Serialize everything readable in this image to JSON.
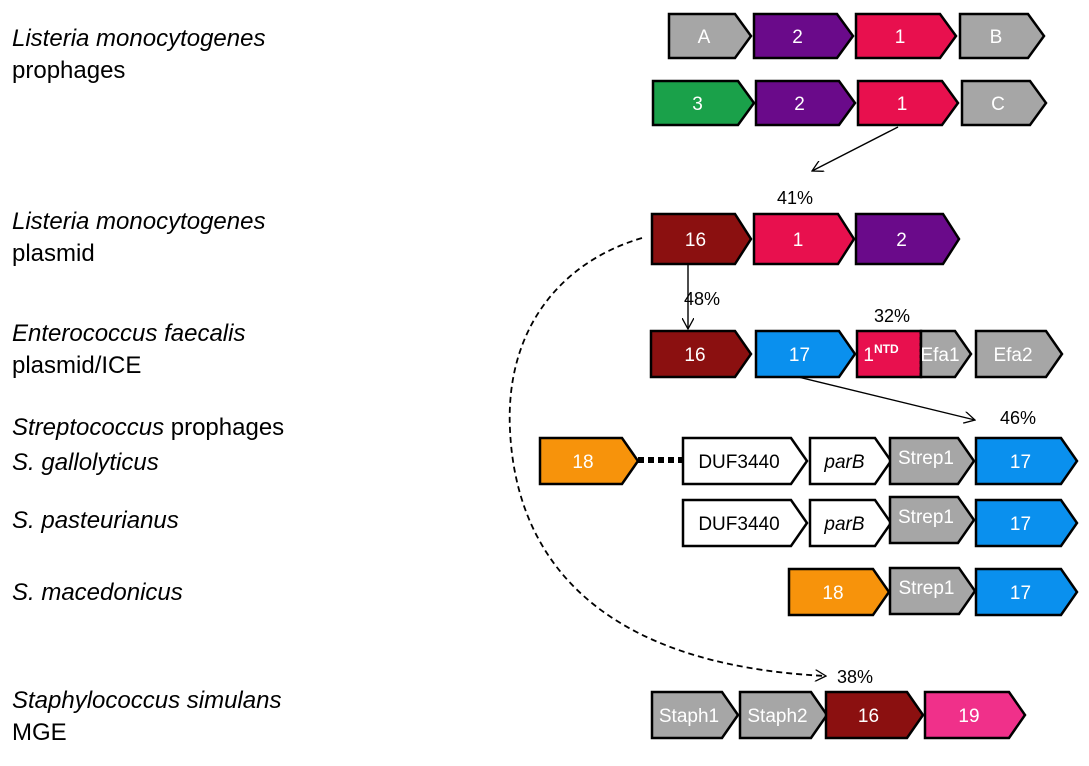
{
  "colors": {
    "grey": "#a6a6a6",
    "purple": "#6a0a8a",
    "crimson": "#e8104e",
    "green": "#1aa14a",
    "maroon": "#8b1010",
    "blue": "#0a90ee",
    "orange": "#f7930b",
    "pink": "#f0308a",
    "white": "#ffffff"
  },
  "labels": [
    {
      "parts": [
        {
          "t": "Listeria monocytogenes",
          "it": true
        }
      ],
      "line2": "prophages"
    },
    {
      "parts": [
        {
          "t": "Listeria monocytogenes",
          "it": true
        }
      ],
      "line2": "plasmid"
    },
    {
      "parts": [
        {
          "t": "Enterococcus faecalis",
          "it": true
        }
      ],
      "line2": "plasmid/ICE"
    },
    {
      "parts": [
        {
          "t": "Streptococcus",
          "it": true
        },
        {
          "t": " prophages",
          "it": false
        }
      ],
      "line2": ""
    },
    {
      "parts": [
        {
          "t": "S. gallolyticus",
          "it": true
        }
      ],
      "line2": ""
    },
    {
      "parts": [
        {
          "t": "S. pasteurianus",
          "it": true
        }
      ],
      "line2": ""
    },
    {
      "parts": [
        {
          "t": "S. macedonicus",
          "it": true
        }
      ],
      "line2": ""
    },
    {
      "parts": [
        {
          "t": "Staphylococcus simulans",
          "it": true
        }
      ],
      "line2": "MGE"
    }
  ],
  "genes": [
    {
      "id": "lm-pro1-A",
      "text": "A",
      "color": "grey"
    },
    {
      "id": "lm-pro1-2",
      "text": "2",
      "color": "purple"
    },
    {
      "id": "lm-pro1-1",
      "text": "1",
      "color": "crimson"
    },
    {
      "id": "lm-pro1-B",
      "text": "B",
      "color": "grey"
    },
    {
      "id": "lm-pro2-3",
      "text": "3",
      "color": "green"
    },
    {
      "id": "lm-pro2-2",
      "text": "2",
      "color": "purple"
    },
    {
      "id": "lm-pro2-1",
      "text": "1",
      "color": "crimson"
    },
    {
      "id": "lm-pro2-C",
      "text": "C",
      "color": "grey"
    },
    {
      "id": "lm-pla-16",
      "text": "16",
      "color": "maroon"
    },
    {
      "id": "lm-pla-1",
      "text": "1",
      "color": "crimson"
    },
    {
      "id": "lm-pla-2",
      "text": "2",
      "color": "purple"
    },
    {
      "id": "ef-16",
      "text": "16",
      "color": "maroon"
    },
    {
      "id": "ef-17",
      "text": "17",
      "color": "blue"
    },
    {
      "id": "ef-1ntd",
      "text": "1",
      "sup": "NTD",
      "color": "crimson"
    },
    {
      "id": "ef-efa1",
      "text": "Efa1",
      "color": "grey"
    },
    {
      "id": "ef-efa2",
      "text": "Efa2",
      "color": "grey"
    },
    {
      "id": "sg-18",
      "text": "18",
      "color": "orange"
    },
    {
      "id": "sg-duf",
      "text": "DUF3440",
      "color": "white"
    },
    {
      "id": "sg-parb",
      "text": "parB",
      "color": "white",
      "italic": true
    },
    {
      "id": "sg-strep1",
      "text": "Strep1",
      "color": "grey"
    },
    {
      "id": "sg-17",
      "text": "17",
      "color": "blue"
    },
    {
      "id": "sp-duf",
      "text": "DUF3440",
      "color": "white"
    },
    {
      "id": "sp-parb",
      "text": "parB",
      "color": "white",
      "italic": true
    },
    {
      "id": "sp-strep1",
      "text": "Strep1",
      "color": "grey"
    },
    {
      "id": "sp-17",
      "text": "17",
      "color": "blue"
    },
    {
      "id": "sm-18",
      "text": "18",
      "color": "orange"
    },
    {
      "id": "sm-strep1",
      "text": "Strep1",
      "color": "grey"
    },
    {
      "id": "sm-17",
      "text": "17",
      "color": "blue"
    },
    {
      "id": "ss-staph1",
      "text": "Staph1",
      "color": "grey"
    },
    {
      "id": "ss-staph2",
      "text": "Staph2",
      "color": "grey"
    },
    {
      "id": "ss-16",
      "text": "16",
      "color": "maroon"
    },
    {
      "id": "ss-19",
      "text": "19",
      "color": "pink"
    }
  ],
  "identities": [
    "41%",
    "48%",
    "32%",
    "46%",
    "38%"
  ]
}
